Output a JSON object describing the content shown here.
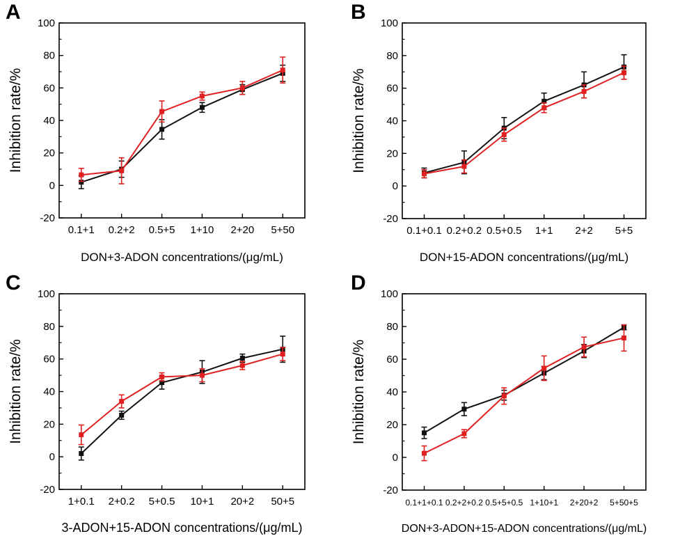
{
  "colors": {
    "black_series": "#111111",
    "red_series": "#e02020",
    "axis": "#000000"
  },
  "chart_data": [
    {
      "type": "line",
      "panel_label": "A",
      "ylabel": "Inhibition rate/%",
      "xlabel": "DON+3-ADON concentrations/(μg/mL)",
      "ylim": [
        -20,
        100
      ],
      "yticks": [
        -20,
        0,
        20,
        40,
        60,
        80,
        100
      ],
      "categories": [
        "0.1+1",
        "0.2+2",
        "0.5+5",
        "1+10",
        "2+20",
        "5+50"
      ],
      "series": [
        {
          "color": "#111111",
          "values": [
            2,
            10,
            34.5,
            48,
            59,
            69
          ],
          "errors": [
            4,
            5,
            6,
            3,
            3,
            5
          ]
        },
        {
          "color": "#e02020",
          "values": [
            6.5,
            9,
            45.5,
            55,
            60,
            71
          ],
          "errors": [
            4,
            8,
            6.5,
            2.5,
            4,
            8
          ]
        }
      ]
    },
    {
      "type": "line",
      "panel_label": "B",
      "ylabel": "Inhibition rate/%",
      "xlabel": "DON+15-ADON concentrations/(μg/mL)",
      "ylim": [
        -20,
        100
      ],
      "yticks": [
        -20,
        0,
        20,
        40,
        60,
        80,
        100
      ],
      "categories": [
        "0.1+0.1",
        "0.2+0.2",
        "0.5+0.5",
        "1+1",
        "2+2",
        "5+5"
      ],
      "series": [
        {
          "color": "#111111",
          "values": [
            8,
            14.5,
            35.5,
            52,
            62,
            73
          ],
          "errors": [
            3,
            7,
            6.5,
            5,
            8,
            7.5
          ]
        },
        {
          "color": "#e02020",
          "values": [
            7.5,
            12,
            31.5,
            48,
            58,
            69.5
          ],
          "errors": [
            2.5,
            4,
            4,
            3,
            4,
            4
          ]
        }
      ]
    },
    {
      "type": "line",
      "panel_label": "C",
      "ylabel": "Inhibition rate/%",
      "xlabel": "3-ADON+15-ADON concentrations/(μg/mL)",
      "ylim": [
        -20,
        100
      ],
      "yticks": [
        -20,
        0,
        20,
        40,
        60,
        80,
        100
      ],
      "categories": [
        "1+0.1",
        "2+0.2",
        "5+0.5",
        "10+1",
        "20+2",
        "50+5"
      ],
      "series": [
        {
          "color": "#111111",
          "values": [
            2,
            25.5,
            45.5,
            52,
            60.5,
            66
          ],
          "errors": [
            4,
            2.5,
            4,
            7,
            2.5,
            8
          ]
        },
        {
          "color": "#e02020",
          "values": [
            13.5,
            34,
            49,
            50,
            56,
            63
          ],
          "errors": [
            6,
            4,
            2.5,
            4,
            2.5,
            4
          ]
        }
      ]
    },
    {
      "type": "line",
      "panel_label": "D",
      "ylabel": "Inhibition rate/%",
      "xlabel": "DON+3-ADON+15-ADON concentrations/(μg/mL)",
      "ylim": [
        -20,
        100
      ],
      "yticks": [
        -20,
        0,
        20,
        40,
        60,
        80,
        100
      ],
      "categories": [
        "0.1+1+0.1",
        "0.2+2+0.2",
        "0.5+5+0.5",
        "1+10+1",
        "2+20+2",
        "5+50+5"
      ],
      "series": [
        {
          "color": "#111111",
          "values": [
            15,
            29.5,
            38,
            51.5,
            65,
            79.5
          ],
          "errors": [
            3.5,
            4,
            3,
            4,
            4,
            1.5
          ]
        },
        {
          "color": "#e02020",
          "values": [
            2.5,
            14.5,
            37.5,
            54.5,
            67.5,
            73
          ],
          "errors": [
            4.5,
            2.5,
            5,
            7.5,
            6,
            8
          ]
        }
      ]
    }
  ]
}
